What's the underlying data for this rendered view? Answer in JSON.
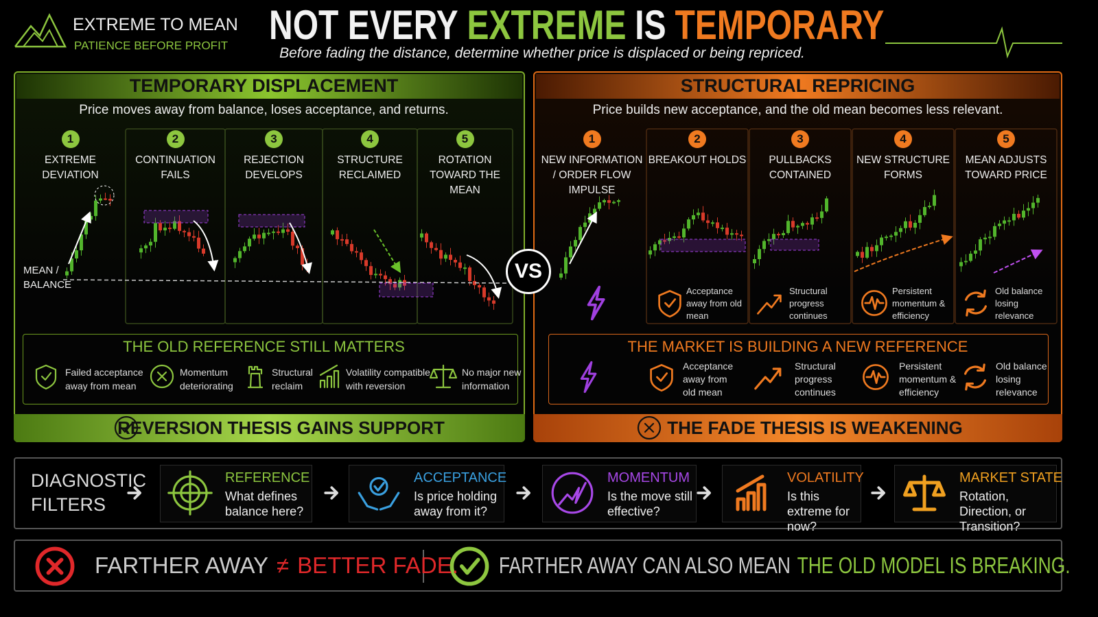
{
  "header": {
    "brand": "EXTREME TO MEAN",
    "tagline": "PATIENCE BEFORE PROFIT",
    "title": {
      "lead": "NOT EVERY",
      "accent1": "EXTREME",
      "middle": "IS",
      "accent2": "TEMPORARY"
    },
    "subtitle": "Before fading the distance, determine whether price is displaced or being repriced."
  },
  "left_panel": {
    "title": "TEMPORARY DISPLACEMENT",
    "description": "Price moves away from balance, loses acceptance, and returns.",
    "steps": [
      {
        "number": "1",
        "label": "EXTREME DEVIATION"
      },
      {
        "number": "2",
        "label": "CONTINUATION FAILS"
      },
      {
        "number": "3",
        "label": "REJECTION DEVELOPS"
      },
      {
        "number": "4",
        "label": "STRUCTURE RECLAIMED"
      },
      {
        "number": "5",
        "label": "ROTATION TOWARD THE MEAN"
      }
    ],
    "mean_label": "MEAN / BALANCE",
    "box_title": "THE OLD REFERENCE STILL MATTERS",
    "items": [
      "Failed acceptance away from mean",
      "Momentum deteriorating",
      "Structural reclaim",
      "Volatility compatible with reversion",
      "No major new information"
    ],
    "conclusion": "REVERSION THESIS GAINS SUPPORT"
  },
  "vs": "VS",
  "right_panel": {
    "title": "STRUCTURAL REPRICING",
    "description": "Price builds new acceptance, and the old mean becomes less relevant.",
    "steps": [
      {
        "number": "1",
        "label": "NEW INFORMATION / ORDER FLOW IMPULSE"
      },
      {
        "number": "2",
        "label": "BREAKOUT HOLDS",
        "note": "Acceptance away from old mean"
      },
      {
        "number": "3",
        "label": "PULLBACKS CONTAINED",
        "note": "Structural progress continues"
      },
      {
        "number": "4",
        "label": "NEW STRUCTURE FORMS",
        "note": "Persistent momentum & efficiency"
      },
      {
        "number": "5",
        "label": "MEAN ADJUSTS TOWARD PRICE",
        "note": "Old balance losing relevance"
      }
    ],
    "box_title": "THE MARKET IS BUILDING A NEW REFERENCE",
    "items": [
      "Acceptance away from old mean",
      "Structural progress continues",
      "Persistent momentum & efficiency",
      "Old balance losing relevance"
    ],
    "conclusion": "THE FADE THESIS IS WEAKENING"
  },
  "diagnostic": {
    "title": "DIAGNOSTIC FILTERS",
    "filters": [
      {
        "name": "REFERENCE",
        "question": "What defines balance here?"
      },
      {
        "name": "ACCEPTANCE",
        "question": "Is price holding away from it?"
      },
      {
        "name": "MOMENTUM",
        "question": "Is the move still effective?"
      },
      {
        "name": "VOLATILITY",
        "question": "Is this extreme for now?"
      },
      {
        "name": "MARKET STATE",
        "question": "Rotation, Direction, or Transition?"
      }
    ]
  },
  "footer": {
    "left": {
      "lead": "FARTHER AWAY",
      "symbol": "≠",
      "accent": "BETTER FADE."
    },
    "right": {
      "lead": "FARTHER AWAY CAN ALSO MEAN",
      "accent": "THE OLD MODEL IS BREAKING."
    }
  }
}
